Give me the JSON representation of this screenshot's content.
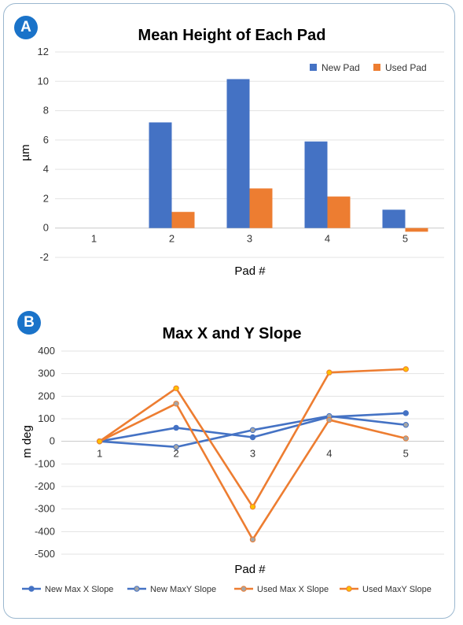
{
  "panels": {
    "a": {
      "badge": "A"
    },
    "b": {
      "badge": "B"
    }
  },
  "colors": {
    "blue": "#4472c4",
    "orange": "#ed7d31",
    "badge": "#1a73c9",
    "gray_marker": "#a5a5a5",
    "gold_marker": "#ffc000"
  },
  "chart_data": [
    {
      "type": "bar",
      "title": "Mean Height of Each Pad",
      "xlabel": "Pad #",
      "ylabel": "µm",
      "categories": [
        "1",
        "2",
        "3",
        "4",
        "5"
      ],
      "ylim": [
        -2,
        12
      ],
      "yticks": [
        "-2",
        "0",
        "2",
        "4",
        "6",
        "8",
        "10",
        "12"
      ],
      "legend_position": "top-right",
      "series": [
        {
          "name": "New Pad",
          "values": [
            0,
            7.2,
            10.15,
            5.9,
            1.25
          ]
        },
        {
          "name": "Used Pad",
          "values": [
            0,
            1.1,
            2.7,
            2.15,
            -0.25
          ]
        }
      ]
    },
    {
      "type": "line",
      "title": "Max X and Y Slope",
      "xlabel": "Pad #",
      "ylabel": "m deg",
      "categories": [
        "1",
        "2",
        "3",
        "4",
        "5"
      ],
      "ylim": [
        -500,
        400
      ],
      "yticks": [
        "400",
        "300",
        "200",
        "100",
        "0",
        "-100",
        "-200",
        "-300",
        "-400",
        "-500"
      ],
      "legend_position": "bottom",
      "series": [
        {
          "name": "New Max X Slope",
          "values": [
            0,
            60,
            18,
            108,
            125
          ]
        },
        {
          "name": "New MaxY Slope",
          "values": [
            0,
            -25,
            50,
            112,
            73
          ]
        },
        {
          "name": "Used Max X Slope",
          "values": [
            0,
            167,
            -435,
            95,
            13
          ]
        },
        {
          "name": "Used MaxY Slope",
          "values": [
            0,
            235,
            -290,
            305,
            320
          ]
        }
      ]
    }
  ]
}
